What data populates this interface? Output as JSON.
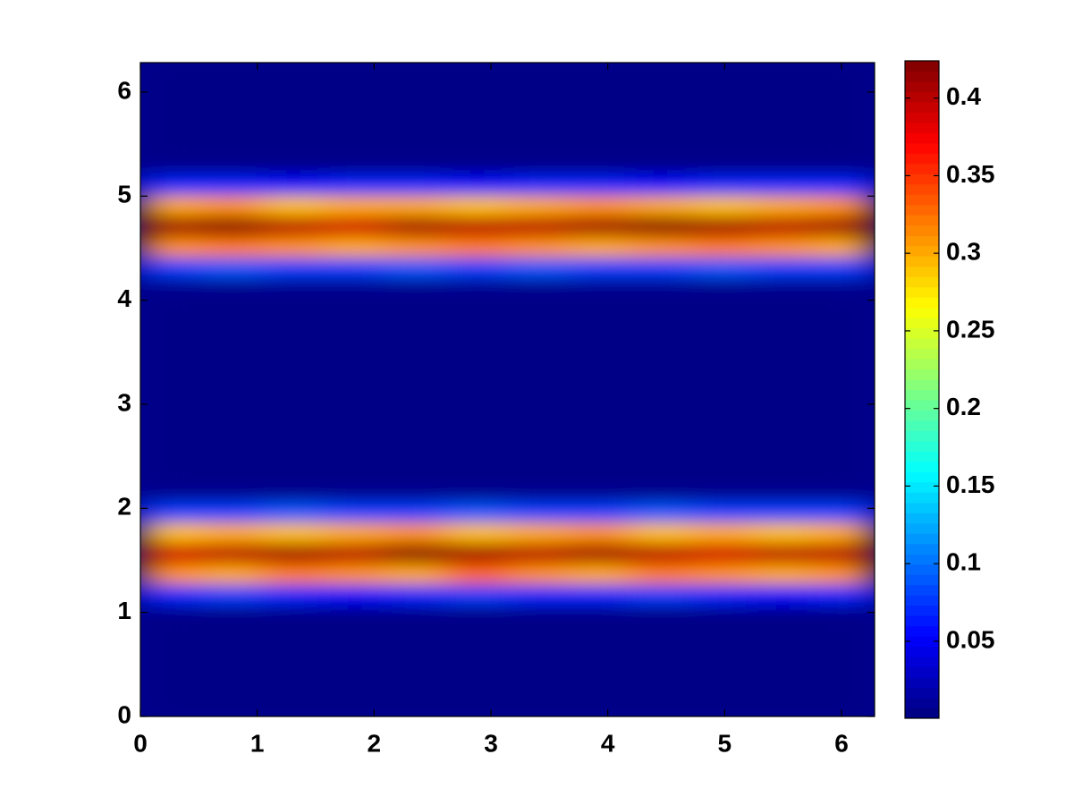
{
  "chart_data": {
    "type": "heatmap",
    "colormap": "jet",
    "x": [
      0.262,
      0.785,
      1.309,
      1.833,
      2.356,
      2.88,
      3.403,
      3.927,
      4.451,
      4.974,
      5.498,
      6.021
    ],
    "y": [
      0,
      0.196,
      0.393,
      0.589,
      0.785,
      0.982,
      1.178,
      1.374,
      1.571,
      1.767,
      1.963,
      2.16,
      2.356,
      2.553,
      2.749,
      2.945,
      3.142,
      3.338,
      3.534,
      3.731,
      3.927,
      4.123,
      4.32,
      4.516,
      4.712,
      4.909,
      5.105,
      5.301,
      5.498,
      5.694,
      5.89,
      6.087,
      6.283
    ],
    "z": [
      [
        0.003,
        0.003,
        0.003,
        0.003,
        0.003,
        0.003,
        0.003,
        0.003,
        0.003,
        0.003,
        0.003,
        0.003
      ],
      [
        0.003,
        0.003,
        0.003,
        0.003,
        0.003,
        0.003,
        0.003,
        0.003,
        0.003,
        0.003,
        0.003,
        0.003
      ],
      [
        0.003,
        0.003,
        0.003,
        0.003,
        0.003,
        0.003,
        0.003,
        0.003,
        0.003,
        0.003,
        0.003,
        0.003
      ],
      [
        0.003,
        0.003,
        0.003,
        0.003,
        0.003,
        0.003,
        0.003,
        0.003,
        0.003,
        0.003,
        0.003,
        0.003
      ],
      [
        0.003,
        0.003,
        0.003,
        0.003,
        0.003,
        0.003,
        0.003,
        0.003,
        0.003,
        0.003,
        0.003,
        0.003
      ],
      [
        0.004,
        0.004,
        0.004,
        0.004,
        0.004,
        0.004,
        0.004,
        0.004,
        0.004,
        0.004,
        0.004,
        0.004
      ],
      [
        0.07,
        0.08,
        0.07,
        0.06,
        0.07,
        0.08,
        0.07,
        0.07,
        0.08,
        0.07,
        0.06,
        0.07
      ],
      [
        0.31,
        0.3,
        0.32,
        0.31,
        0.3,
        0.33,
        0.31,
        0.3,
        0.32,
        0.31,
        0.3,
        0.31
      ],
      [
        0.39,
        0.4,
        0.41,
        0.4,
        0.42,
        0.41,
        0.4,
        0.41,
        0.4,
        0.39,
        0.4,
        0.4
      ],
      [
        0.29,
        0.3,
        0.29,
        0.3,
        0.31,
        0.29,
        0.3,
        0.31,
        0.29,
        0.3,
        0.29,
        0.3
      ],
      [
        0.08,
        0.08,
        0.09,
        0.08,
        0.08,
        0.09,
        0.08,
        0.08,
        0.09,
        0.08,
        0.08,
        0.08
      ],
      [
        0.006,
        0.006,
        0.006,
        0.006,
        0.006,
        0.006,
        0.006,
        0.006,
        0.006,
        0.006,
        0.006,
        0.006
      ],
      [
        0.003,
        0.003,
        0.003,
        0.003,
        0.003,
        0.003,
        0.003,
        0.003,
        0.003,
        0.003,
        0.003,
        0.003
      ],
      [
        0.003,
        0.003,
        0.003,
        0.003,
        0.003,
        0.003,
        0.003,
        0.003,
        0.003,
        0.003,
        0.003,
        0.003
      ],
      [
        0.003,
        0.003,
        0.003,
        0.003,
        0.003,
        0.003,
        0.003,
        0.003,
        0.003,
        0.003,
        0.003,
        0.003
      ],
      [
        0.003,
        0.003,
        0.003,
        0.003,
        0.003,
        0.003,
        0.003,
        0.003,
        0.003,
        0.003,
        0.003,
        0.003
      ],
      [
        0.003,
        0.003,
        0.003,
        0.003,
        0.003,
        0.003,
        0.003,
        0.003,
        0.003,
        0.003,
        0.003,
        0.003
      ],
      [
        0.003,
        0.003,
        0.003,
        0.003,
        0.003,
        0.003,
        0.003,
        0.003,
        0.003,
        0.003,
        0.003,
        0.003
      ],
      [
        0.003,
        0.003,
        0.003,
        0.003,
        0.003,
        0.003,
        0.003,
        0.003,
        0.003,
        0.003,
        0.003,
        0.003
      ],
      [
        0.003,
        0.003,
        0.003,
        0.003,
        0.003,
        0.003,
        0.003,
        0.003,
        0.003,
        0.003,
        0.003,
        0.003
      ],
      [
        0.003,
        0.003,
        0.003,
        0.003,
        0.003,
        0.003,
        0.003,
        0.003,
        0.003,
        0.003,
        0.003,
        0.003
      ],
      [
        0.006,
        0.006,
        0.006,
        0.006,
        0.006,
        0.006,
        0.006,
        0.006,
        0.006,
        0.006,
        0.006,
        0.006
      ],
      [
        0.08,
        0.09,
        0.08,
        0.08,
        0.09,
        0.08,
        0.09,
        0.08,
        0.08,
        0.09,
        0.08,
        0.08
      ],
      [
        0.31,
        0.32,
        0.31,
        0.3,
        0.31,
        0.32,
        0.31,
        0.3,
        0.31,
        0.32,
        0.31,
        0.3
      ],
      [
        0.41,
        0.42,
        0.4,
        0.39,
        0.41,
        0.4,
        0.4,
        0.41,
        0.42,
        0.41,
        0.4,
        0.41
      ],
      [
        0.3,
        0.31,
        0.29,
        0.3,
        0.3,
        0.29,
        0.3,
        0.31,
        0.3,
        0.29,
        0.3,
        0.31
      ],
      [
        0.07,
        0.07,
        0.06,
        0.07,
        0.07,
        0.06,
        0.07,
        0.07,
        0.06,
        0.07,
        0.07,
        0.07
      ],
      [
        0.005,
        0.005,
        0.005,
        0.005,
        0.005,
        0.005,
        0.005,
        0.005,
        0.005,
        0.005,
        0.005,
        0.005
      ],
      [
        0.003,
        0.003,
        0.003,
        0.003,
        0.003,
        0.003,
        0.003,
        0.003,
        0.003,
        0.003,
        0.003,
        0.003
      ],
      [
        0.003,
        0.003,
        0.003,
        0.003,
        0.003,
        0.003,
        0.003,
        0.003,
        0.003,
        0.003,
        0.003,
        0.003
      ],
      [
        0.003,
        0.003,
        0.003,
        0.003,
        0.003,
        0.003,
        0.003,
        0.003,
        0.003,
        0.003,
        0.003,
        0.003
      ],
      [
        0.003,
        0.003,
        0.003,
        0.003,
        0.003,
        0.003,
        0.003,
        0.003,
        0.003,
        0.003,
        0.003,
        0.003
      ],
      [
        0.003,
        0.003,
        0.003,
        0.003,
        0.003,
        0.003,
        0.003,
        0.003,
        0.003,
        0.003,
        0.003,
        0.003
      ]
    ],
    "xlim": [
      0,
      6.283
    ],
    "ylim": [
      0,
      6.283
    ],
    "xticks": [
      0,
      1,
      2,
      3,
      4,
      5,
      6
    ],
    "yticks": [
      0,
      1,
      2,
      3,
      4,
      5,
      6
    ],
    "clim": [
      0.0004,
      0.424
    ],
    "colorbar_ticks": [
      0.05,
      0.1,
      0.15,
      0.2,
      0.25,
      0.3,
      0.35,
      0.4
    ]
  }
}
